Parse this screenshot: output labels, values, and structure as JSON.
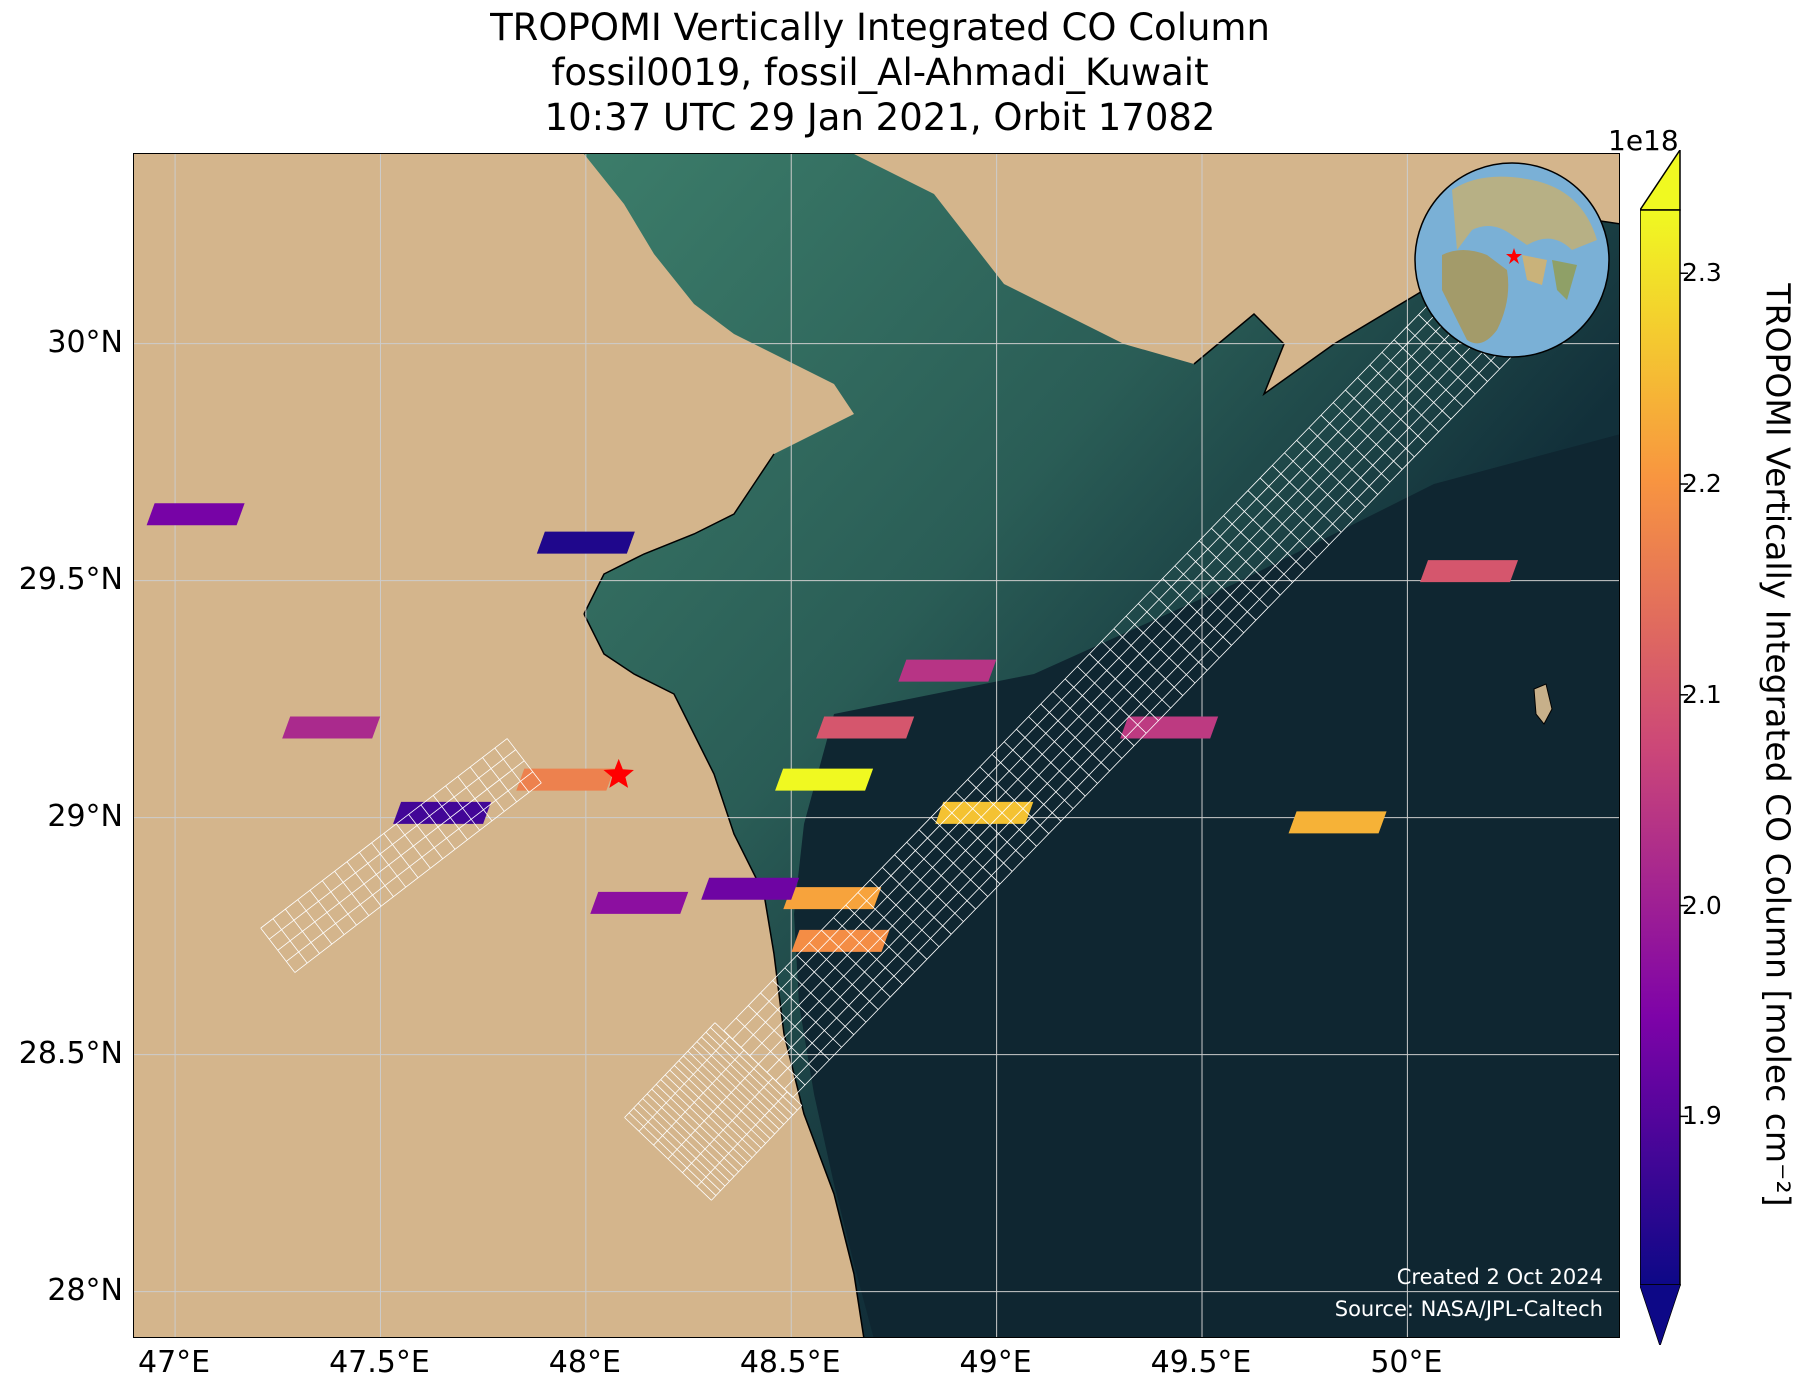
{
  "title": {
    "line1": "TROPOMI Vertically Integrated CO Column",
    "line2": "fossil0019, fossil_Al-Ahmadi_Kuwait",
    "line3": "10:37 UTC 29 Jan 2021, Orbit 17082"
  },
  "map": {
    "lon_range": [
      46.9,
      50.52
    ],
    "lat_range": [
      27.9,
      30.4
    ],
    "x_ticks": [
      {
        "lon": 47.0,
        "label": "47°E"
      },
      {
        "lon": 47.5,
        "label": "47.5°E"
      },
      {
        "lon": 48.0,
        "label": "48°E"
      },
      {
        "lon": 48.5,
        "label": "48.5°E"
      },
      {
        "lon": 49.0,
        "label": "49°E"
      },
      {
        "lon": 49.5,
        "label": "49.5°E"
      },
      {
        "lon": 50.0,
        "label": "50°E"
      }
    ],
    "y_ticks": [
      {
        "lat": 30.0,
        "label": "30°N"
      },
      {
        "lat": 29.5,
        "label": "29.5°N"
      },
      {
        "lat": 29.0,
        "label": "29°N"
      },
      {
        "lat": 28.5,
        "label": "28.5°N"
      },
      {
        "lat": 28.0,
        "label": "28°N"
      }
    ],
    "source_marker": {
      "lon": 48.08,
      "lat": 29.09,
      "symbol": "red-star"
    },
    "colors": {
      "land": "#d4b58c",
      "sea": "#10262f",
      "shallow_sea": "#2f6a5c",
      "gridline": "#cccccc",
      "star": "#ff0000"
    }
  },
  "chart_data": {
    "type": "heatmap",
    "variable": "TROPOMI Vertically Integrated CO Column [molec cm⁻²]",
    "units": "molec cm⁻²",
    "color_scale": "plasma",
    "vmin": 1.82e+18,
    "vmax": 2.33e+18,
    "pixels": [
      {
        "lon": 48.97,
        "lat": 29.01,
        "value": 2.26e+18
      },
      {
        "lon": 49.83,
        "lat": 28.99,
        "value": 2.24e+18
      },
      {
        "lon": 48.58,
        "lat": 29.08,
        "value": 2.33e+18
      },
      {
        "lon": 48.6,
        "lat": 28.83,
        "value": 2.22e+18
      },
      {
        "lon": 48.62,
        "lat": 28.74,
        "value": 2.19e+18
      },
      {
        "lon": 47.95,
        "lat": 29.08,
        "value": 2.17e+18
      },
      {
        "lon": 49.42,
        "lat": 29.19,
        "value": 2.05e+18
      },
      {
        "lon": 50.15,
        "lat": 29.52,
        "value": 2.1e+18
      },
      {
        "lon": 48.0,
        "lat": 29.58,
        "value": 1.84e+18
      },
      {
        "lon": 47.65,
        "lat": 29.01,
        "value": 1.88e+18
      },
      {
        "lon": 48.13,
        "lat": 28.82,
        "value": 1.97e+18
      },
      {
        "lon": 48.4,
        "lat": 28.85,
        "value": 1.93e+18
      },
      {
        "lon": 48.88,
        "lat": 29.31,
        "value": 2.04e+18
      },
      {
        "lon": 48.68,
        "lat": 29.19,
        "value": 2.1e+18
      },
      {
        "lon": 47.38,
        "lat": 29.19,
        "value": 2.02e+18
      },
      {
        "lon": 47.05,
        "lat": 29.64,
        "value": 1.94e+18
      }
    ],
    "colorbar": {
      "ticks": [
        1.9e+18,
        2e+18,
        2.1e+18,
        2.2e+18,
        2.3e+18
      ],
      "tick_labels": [
        "1.9",
        "2.0",
        "2.1",
        "2.2",
        "2.3"
      ],
      "exponent_label": "1e18",
      "label": "TROPOMI Vertically Integrated CO Column [molec cm⁻²]",
      "extend": "both"
    }
  },
  "credits": {
    "created": "Created 2 Oct 2024",
    "source": "Source: NASA/JPL-Caltech"
  }
}
